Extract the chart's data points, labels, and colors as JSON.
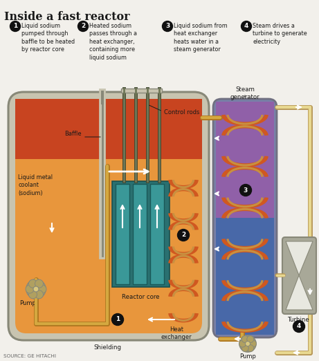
{
  "title": "Inside a fast reactor",
  "source": "SOURCE: GE HITACHI",
  "bg_color": "#f2f0eb",
  "step1_text": "Liquid sodium\npumped through\nbaffle to be heated\nby reactor core",
  "step2_text": "Heated sodium\npasses through a\nheat exchanger,\ncontaining more\nliquid sodium",
  "step3_text": "Liquid sodium from\nheat exchanger\nheats water in a\nsteam generator",
  "step4_text": "Steam drives a\nturbine to generate\nelectricity",
  "label_baffle": "Baffle",
  "label_control_rods": "Control rods",
  "label_liquid_metal": "Liquid metal\ncoolant\n(sodium)",
  "label_pump_left": "Pump",
  "label_reactor_core": "Reactor core",
  "label_heat_exchanger": "Heat\nexchanger",
  "label_shielding": "Shielding",
  "label_steam_generator": "Steam\ngenerator",
  "label_turbine": "Turbine",
  "label_pump_right": "Pump",
  "vessel_orange": "#e8963c",
  "vessel_red": "#c84420",
  "reactor_core_bg": "#2a7070",
  "reactor_rod_light": "#3a9898",
  "reactor_rod_dark": "#1a5858",
  "shielding_color": "#c8c4b0",
  "vessel_outline": "#888878",
  "coil_outer": "#d05820",
  "coil_inner": "#c89040",
  "sg_purple": "#9060a8",
  "sg_blue": "#4868a8",
  "sg_outline": "#707080",
  "turbine_bg": "#a8a898",
  "turbine_white": "#e8e8e0",
  "pipe_dark": "#b07820",
  "pipe_light": "#d4a840",
  "steam_pipe": "#b89858",
  "black_circle": "#111111",
  "white": "#ffffff",
  "dark_text": "#1a1a1a",
  "gray_text": "#444444"
}
